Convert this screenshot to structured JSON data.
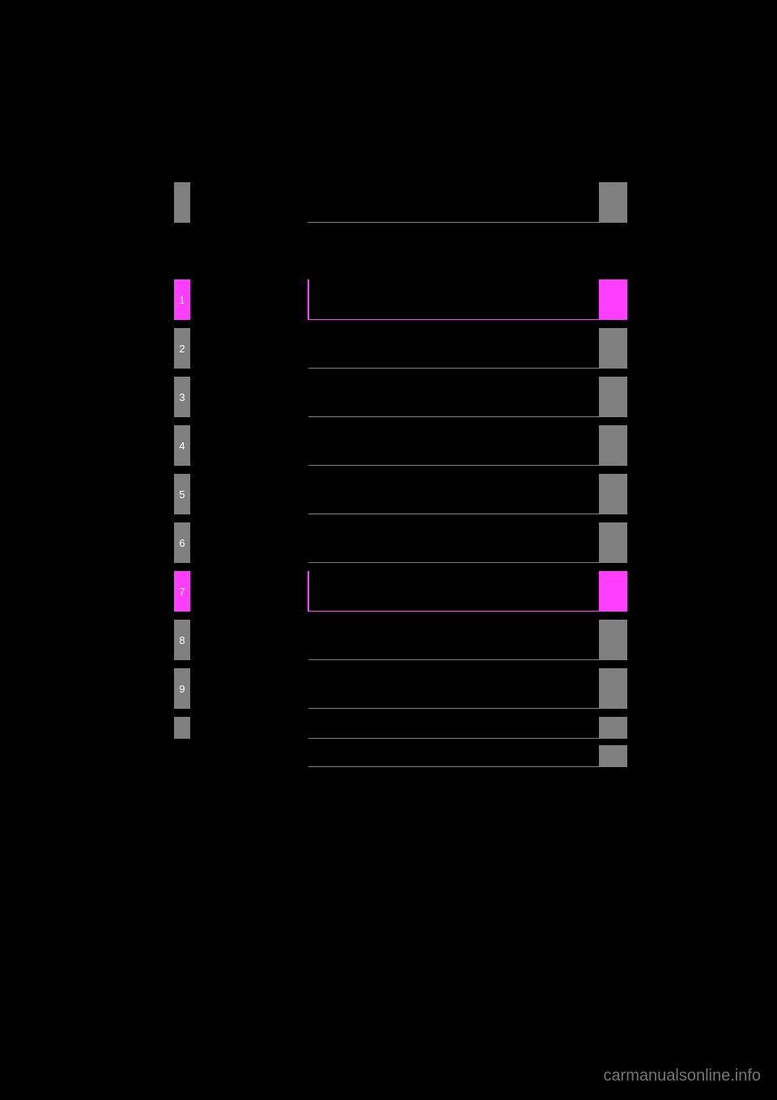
{
  "header": {
    "tab_color": "#808080",
    "endtab_color": "#808080"
  },
  "toc": [
    {
      "num": "1",
      "highlighted": true
    },
    {
      "num": "2",
      "highlighted": false
    },
    {
      "num": "3",
      "highlighted": false
    },
    {
      "num": "4",
      "highlighted": false
    },
    {
      "num": "5",
      "highlighted": false
    },
    {
      "num": "6",
      "highlighted": false
    },
    {
      "num": "7",
      "highlighted": true
    },
    {
      "num": "8",
      "highlighted": false
    },
    {
      "num": "9",
      "highlighted": false
    }
  ],
  "extra_rows": [
    {
      "size": "small"
    },
    {
      "size": "small"
    }
  ],
  "colors": {
    "background": "#000000",
    "gray": "#808080",
    "highlight": "#ff3eff",
    "text": "#ffffff"
  },
  "watermark": "carmanualsonline.info"
}
